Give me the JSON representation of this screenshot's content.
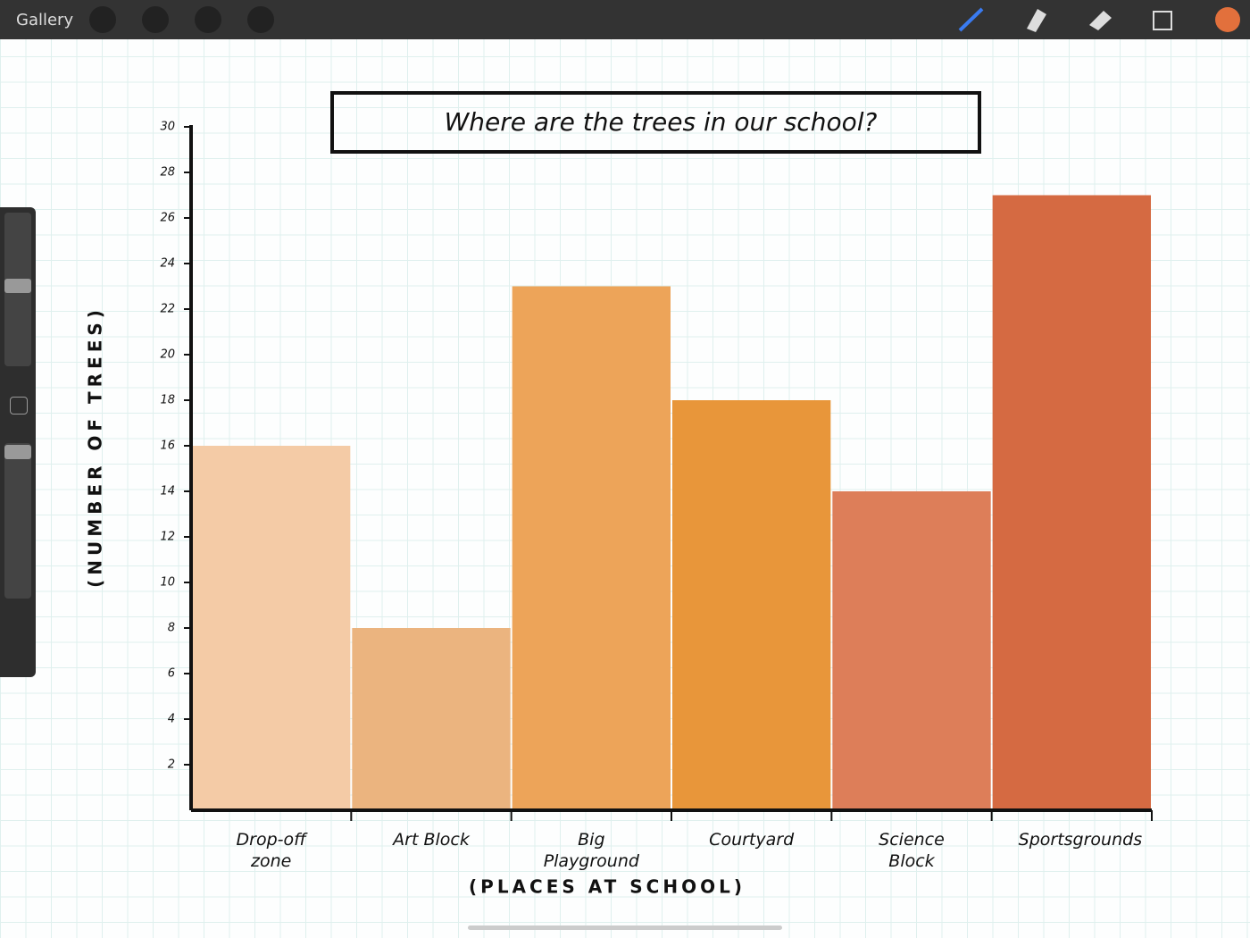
{
  "toolbar": {
    "gallery": "Gallery"
  },
  "chart_data": {
    "type": "bar",
    "title": "Where are the trees in our school?",
    "x_label": "(PLACES AT SCHOOL)",
    "y_label": "(NUMBER OF TREES)",
    "categories": [
      "Drop-off zone",
      "Art Block",
      "Big Playground",
      "Courtyard",
      "Science Block",
      "Sportsgrounds"
    ],
    "values": [
      16,
      8,
      23,
      18,
      14,
      27
    ],
    "colors": [
      "#f4cba6",
      "#ebb47f",
      "#eda459",
      "#e8963a",
      "#dd7e59",
      "#d56a42"
    ],
    "ylim": [
      0,
      30
    ],
    "yticks": [
      2,
      4,
      6,
      8,
      10,
      12,
      14,
      16,
      18,
      20,
      22,
      24,
      26,
      28,
      30
    ]
  }
}
